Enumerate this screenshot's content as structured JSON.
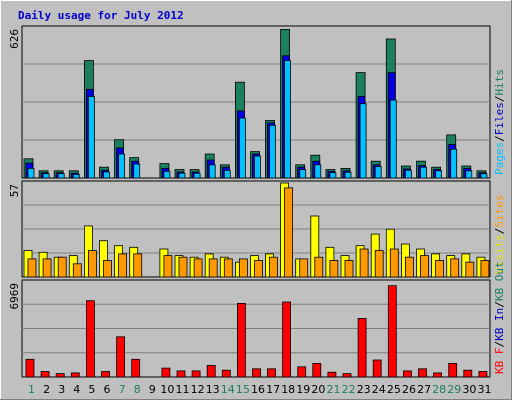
{
  "colors": {
    "background": "#c0c0c0",
    "panel": "#c0c0c0",
    "gridline": "#7f7f7f",
    "title": "#0000cc",
    "hits": "#1c7f5f",
    "files": "#0000e6",
    "pages": "#00c0ff",
    "visits": "#ffff00",
    "sites": "#ff9900",
    "kbin": "#0000c0",
    "kbout": "#1c7f5f",
    "kbf": "#ff0000",
    "weekend_tick": "#1c7f5f",
    "weekday_tick": "#000000"
  },
  "chart_data": {
    "type": "bar",
    "title": "Daily usage for July 2012",
    "categories": [
      "1",
      "2",
      "3",
      "4",
      "5",
      "6",
      "7",
      "8",
      "9",
      "10",
      "11",
      "12",
      "13",
      "14",
      "15",
      "16",
      "17",
      "18",
      "19",
      "20",
      "21",
      "22",
      "23",
      "24",
      "25",
      "26",
      "27",
      "28",
      "29",
      "30",
      "31"
    ],
    "weekend_days": [
      "1",
      "7",
      "8",
      "14",
      "15",
      "21",
      "22",
      "28",
      "29"
    ],
    "missing_days": [
      "9"
    ],
    "panels": [
      {
        "id": "hits-files-pages",
        "ymax_label": "626",
        "ymax": 626,
        "legend": [
          {
            "text": "Pages",
            "color": "#00c0ff"
          },
          {
            "text": "/",
            "color": "#000000"
          },
          {
            "text": "Files",
            "color": "#0000c0"
          },
          {
            "text": "/",
            "color": "#000000"
          },
          {
            "text": "Hits",
            "color": "#1c7f5f"
          }
        ],
        "series": [
          {
            "name": "Hits",
            "values": [
              80,
              30,
              30,
              30,
              490,
              45,
              160,
              85,
              0,
              60,
              35,
              35,
              100,
              55,
              400,
              110,
              240,
              620,
              55,
              95,
              35,
              40,
              440,
              70,
              580,
              50,
              70,
              45,
              180,
              50,
              30
            ]
          },
          {
            "name": "Files",
            "values": [
              62,
              22,
              22,
              20,
              370,
              32,
              125,
              70,
              0,
              40,
              25,
              25,
              75,
              45,
              280,
              100,
              230,
              510,
              45,
              70,
              28,
              30,
              340,
              55,
              440,
              38,
              52,
              36,
              140,
              40,
              22
            ]
          },
          {
            "name": "Pages",
            "values": [
              40,
              18,
              18,
              15,
              340,
              25,
              100,
              58,
              0,
              28,
              20,
              20,
              55,
              32,
              250,
              92,
              220,
              490,
              35,
              55,
              22,
              24,
              310,
              48,
              325,
              32,
              45,
              30,
              120,
              30,
              18
            ]
          }
        ]
      },
      {
        "id": "visits-sites",
        "ymax_label": "57",
        "ymax": 57,
        "legend": [
          {
            "text": "Visits",
            "color": "#e6e600"
          },
          {
            "text": "/",
            "color": "#000000"
          },
          {
            "text": "Sites",
            "color": "#ff9900"
          }
        ],
        "series": [
          {
            "name": "Visits",
            "values": [
              16,
              15,
              12,
              13,
              31,
              22,
              19,
              18,
              0,
              17,
              13,
              12,
              14,
              12,
              9,
              13,
              14,
              57,
              11,
              37,
              18,
              13,
              19,
              26,
              29,
              20,
              17,
              14,
              13,
              14,
              12
            ]
          },
          {
            "name": "Sites",
            "values": [
              11,
              11,
              12,
              8,
              16,
              10,
              14,
              14,
              0,
              13,
              12,
              11,
              11,
              11,
              11,
              10,
              12,
              54,
              11,
              12,
              10,
              10,
              17,
              16,
              17,
              12,
              13,
              10,
              11,
              9,
              10
            ]
          }
        ]
      },
      {
        "id": "kb",
        "ymax_label": "6969",
        "ymax": 6969,
        "legend": [
          {
            "text": "KB F",
            "color": "#ff0000"
          },
          {
            "text": "/",
            "color": "#000000"
          },
          {
            "text": "KB In",
            "color": "#0000c0"
          },
          {
            "text": "/",
            "color": "#000000"
          },
          {
            "text": "KB Out",
            "color": "#1c7f5f"
          }
        ],
        "series": [
          {
            "name": "KB F",
            "values": [
              1300,
              400,
              250,
              300,
              5600,
              400,
              2950,
              1300,
              0,
              650,
              450,
              450,
              850,
              500,
              5400,
              600,
              600,
              5500,
              750,
              1000,
              350,
              250,
              4300,
              1250,
              6700,
              450,
              600,
              300,
              1000,
              500,
              400
            ]
          }
        ]
      }
    ]
  }
}
